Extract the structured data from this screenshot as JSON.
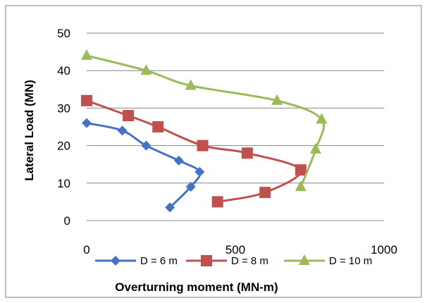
{
  "chart_data": {
    "type": "line",
    "xlabel": "Overturning moment (MN-m)",
    "ylabel": "Lateral Load (MN)",
    "xlim": [
      0,
      1000
    ],
    "ylim": [
      0,
      50
    ],
    "x_ticks": [
      "0",
      "500",
      "1000"
    ],
    "y_ticks": [
      "0",
      "10",
      "20",
      "30",
      "40",
      "50"
    ],
    "grid": "horizontal",
    "legend_position": "bottom",
    "series": [
      {
        "name": "D = 6 m",
        "color": "#4472C4",
        "marker": "diamond",
        "points": [
          [
            0,
            26
          ],
          [
            120,
            24
          ],
          [
            200,
            20
          ],
          [
            310,
            16
          ],
          [
            380,
            13
          ],
          [
            350,
            9
          ],
          [
            280,
            3.5
          ]
        ]
      },
      {
        "name": "D = 8 m",
        "color": "#C0504D",
        "marker": "square",
        "points": [
          [
            0,
            32
          ],
          [
            140,
            28
          ],
          [
            240,
            25
          ],
          [
            390,
            20
          ],
          [
            540,
            18
          ],
          [
            720,
            13.5
          ],
          [
            600,
            7.5
          ],
          [
            440,
            5
          ]
        ]
      },
      {
        "name": "D = 10 m",
        "color": "#9BBB59",
        "marker": "triangle",
        "points": [
          [
            0,
            44
          ],
          [
            200,
            40
          ],
          [
            350,
            36
          ],
          [
            640,
            32
          ],
          [
            790,
            27
          ],
          [
            770,
            19
          ],
          [
            720,
            9
          ]
        ]
      }
    ]
  }
}
